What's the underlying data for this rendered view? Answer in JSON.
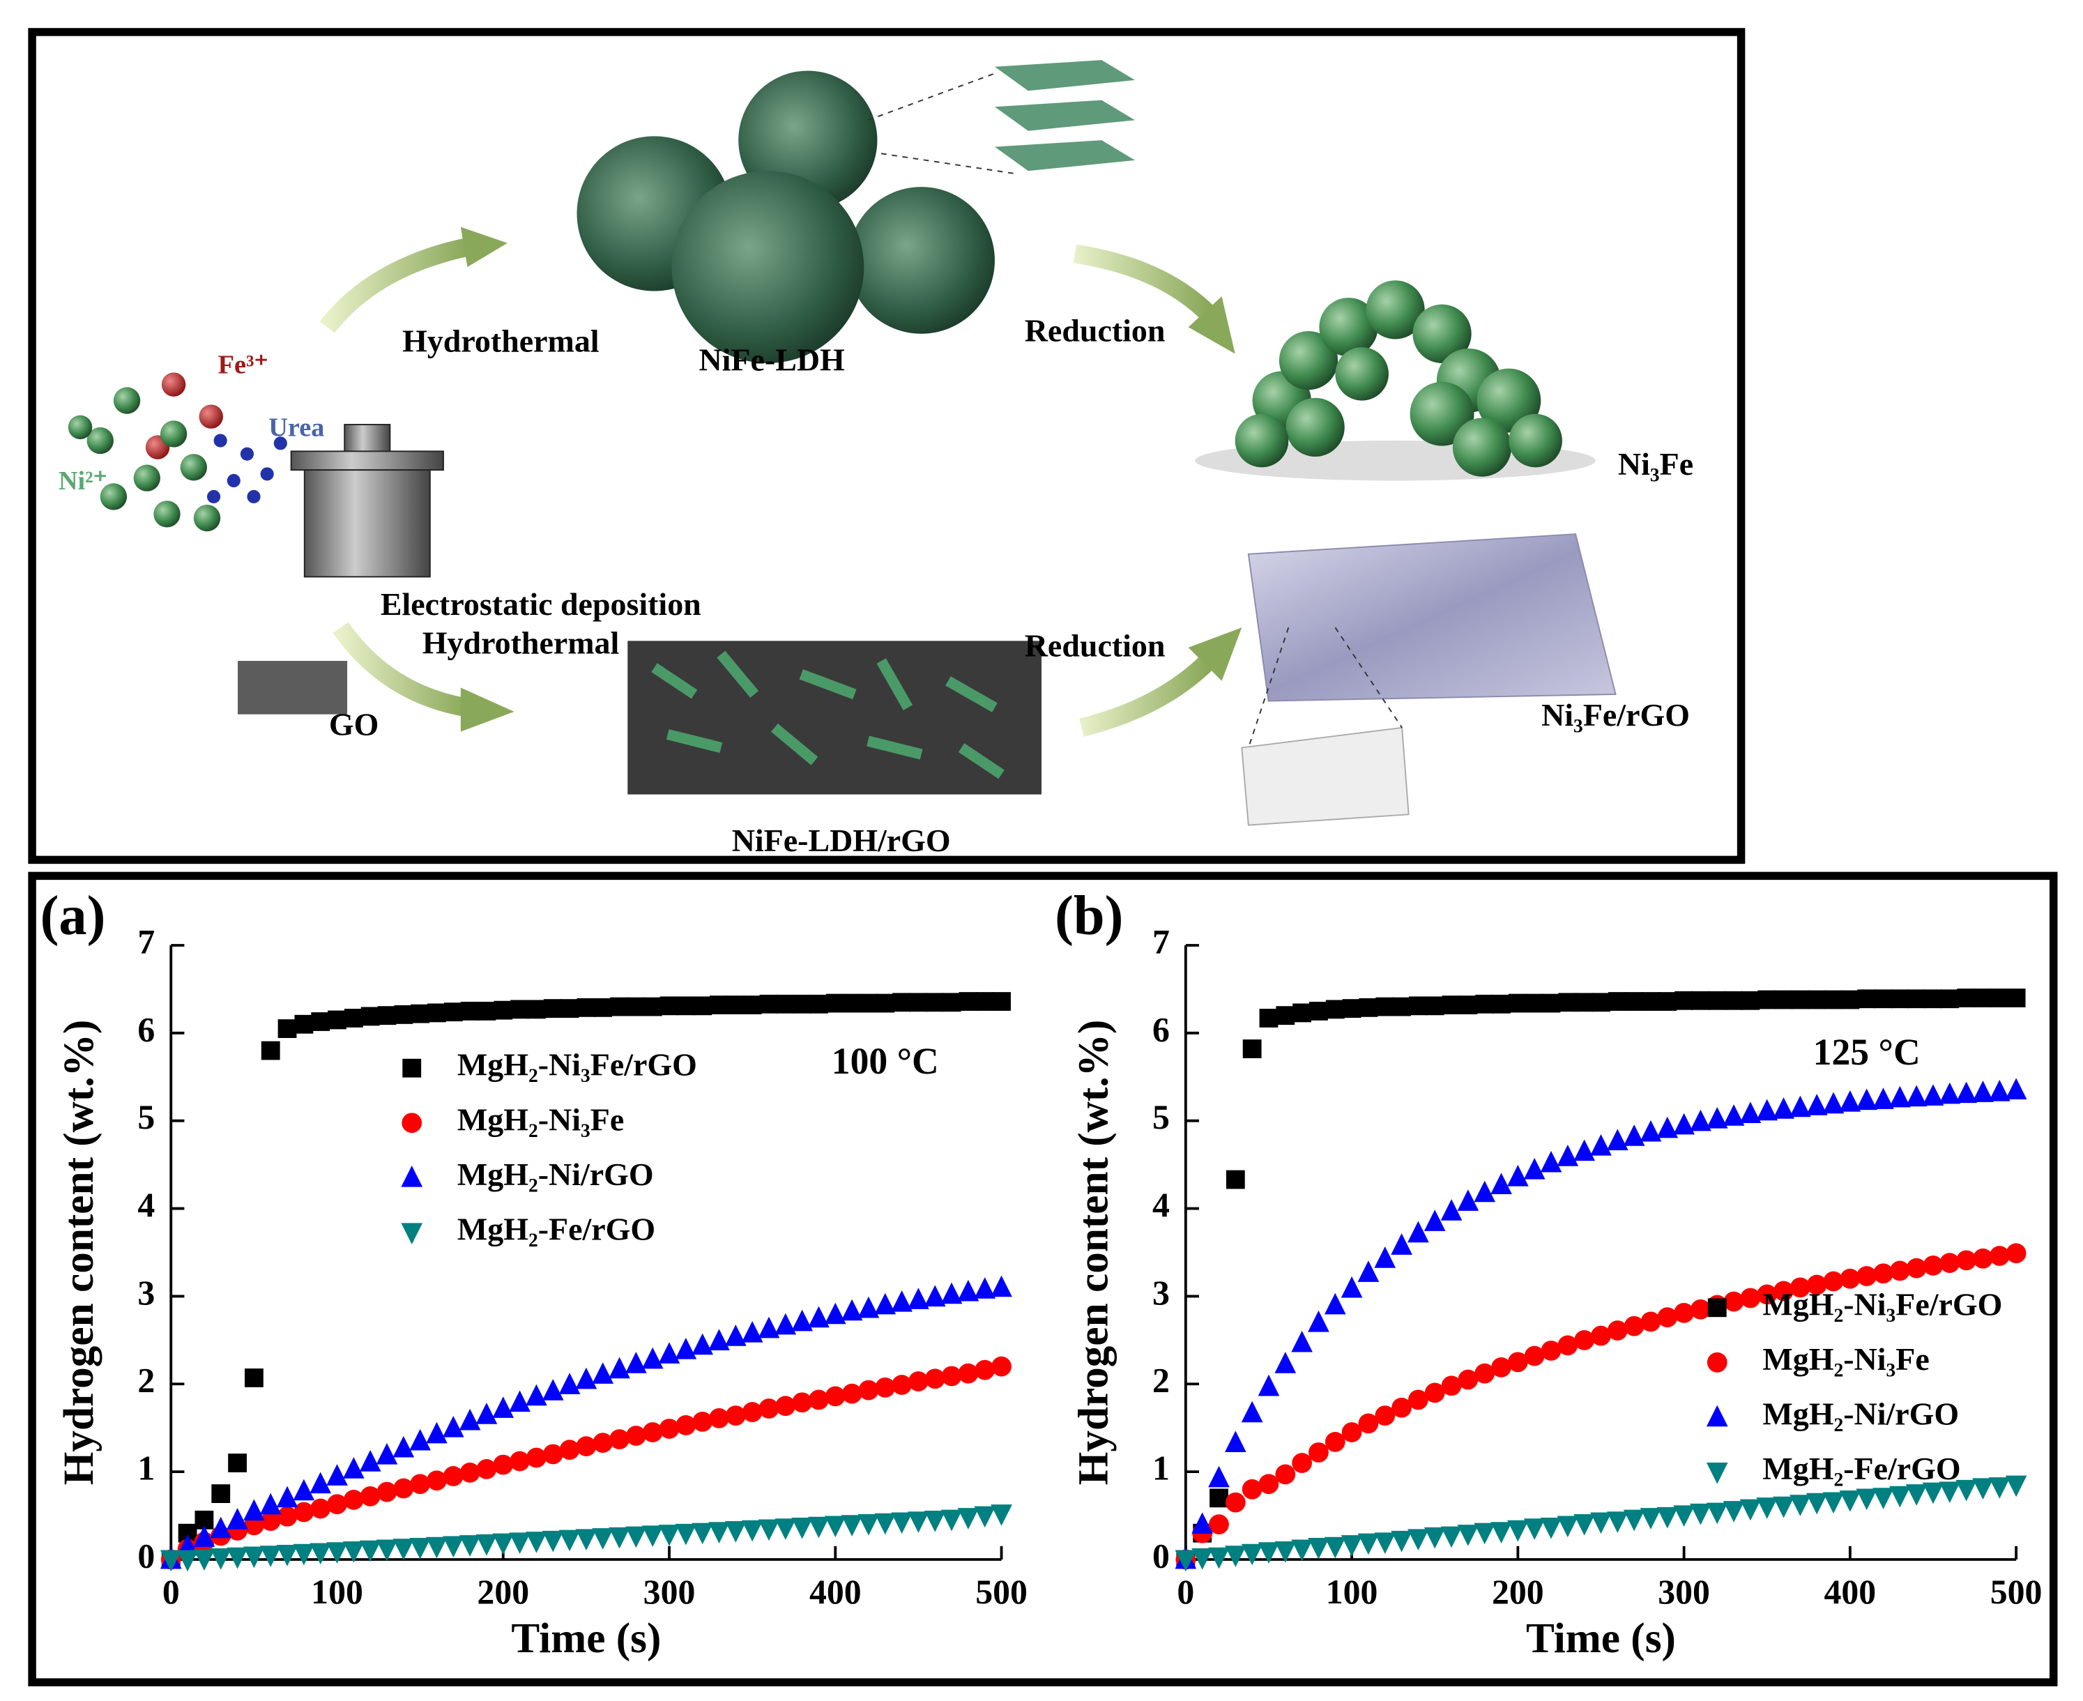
{
  "diagram": {
    "hydrothermal_top": "Hydrothermal",
    "nife_ldh": "NiFe-LDH",
    "reduction_top": "Reduction",
    "ni3fe": "Ni₃Fe",
    "fe3": "Fe³⁺",
    "urea": "Urea",
    "ni2": "Ni²⁺",
    "electrostatic": "Electrostatic deposition",
    "hydrothermal_bottom": "Hydrothermal",
    "go": "GO",
    "nife_ldh_rgo": "NiFe-LDH/rGO",
    "reduction_bottom": "Reduction",
    "ni3fe_rgo": "Ni₃Fe/rGO"
  },
  "chart_data": [
    {
      "type": "scatter",
      "panel": "(a)",
      "annotation": "100 °C",
      "xlabel": "Time (s)",
      "ylabel": "Hydrogen content (wt.%)",
      "xlim": [
        0,
        500
      ],
      "ylim": [
        0,
        7
      ],
      "xticks": [
        0,
        100,
        200,
        300,
        400,
        500
      ],
      "yticks": [
        0,
        1,
        2,
        3,
        4,
        5,
        6,
        7
      ],
      "legend": "upper center",
      "x": [
        0,
        10,
        20,
        30,
        40,
        50,
        60,
        70,
        80,
        90,
        100,
        110,
        120,
        130,
        140,
        150,
        160,
        170,
        180,
        190,
        200,
        210,
        220,
        230,
        240,
        250,
        260,
        270,
        280,
        290,
        300,
        310,
        320,
        330,
        340,
        350,
        360,
        370,
        380,
        390,
        400,
        410,
        420,
        430,
        440,
        450,
        460,
        470,
        480,
        490,
        500
      ],
      "series": [
        {
          "name": "MgH₂-Ni₃Fe/rGO",
          "color": "#000000",
          "marker": "square",
          "values": [
            0,
            0.3,
            0.45,
            0.75,
            1.1,
            2.07,
            5.8,
            6.05,
            6.1,
            6.13,
            6.15,
            6.17,
            6.19,
            6.2,
            6.21,
            6.22,
            6.23,
            6.24,
            6.25,
            6.25,
            6.26,
            6.27,
            6.27,
            6.28,
            6.28,
            6.29,
            6.29,
            6.3,
            6.3,
            6.3,
            6.31,
            6.31,
            6.31,
            6.32,
            6.32,
            6.32,
            6.33,
            6.33,
            6.33,
            6.33,
            6.34,
            6.34,
            6.34,
            6.34,
            6.35,
            6.35,
            6.35,
            6.35,
            6.36,
            6.36,
            6.36
          ]
        },
        {
          "name": "MgH₂-Ni₃Fe",
          "color": "#ff0000",
          "marker": "circle",
          "values": [
            0,
            0.12,
            0.2,
            0.27,
            0.33,
            0.39,
            0.44,
            0.49,
            0.54,
            0.58,
            0.63,
            0.68,
            0.72,
            0.77,
            0.81,
            0.86,
            0.9,
            0.95,
            0.99,
            1.03,
            1.08,
            1.12,
            1.16,
            1.2,
            1.25,
            1.29,
            1.33,
            1.37,
            1.41,
            1.45,
            1.49,
            1.53,
            1.57,
            1.61,
            1.64,
            1.68,
            1.72,
            1.75,
            1.79,
            1.82,
            1.86,
            1.89,
            1.93,
            1.96,
            1.99,
            2.03,
            2.06,
            2.09,
            2.12,
            2.16,
            2.2
          ]
        },
        {
          "name": "MgH₂-Ni/rGO",
          "color": "#0000ff",
          "marker": "triangle-up",
          "values": [
            0,
            0.15,
            0.25,
            0.35,
            0.45,
            0.55,
            0.62,
            0.7,
            0.78,
            0.86,
            0.95,
            1.03,
            1.11,
            1.19,
            1.27,
            1.35,
            1.43,
            1.5,
            1.58,
            1.65,
            1.72,
            1.79,
            1.86,
            1.92,
            1.99,
            2.05,
            2.11,
            2.17,
            2.23,
            2.28,
            2.34,
            2.39,
            2.44,
            2.49,
            2.54,
            2.58,
            2.63,
            2.67,
            2.71,
            2.75,
            2.79,
            2.83,
            2.86,
            2.9,
            2.93,
            2.96,
            2.99,
            3.02,
            3.05,
            3.08,
            3.1
          ]
        },
        {
          "name": "MgH₂-Fe/rGO",
          "color": "#008080",
          "marker": "triangle-down",
          "values": [
            0,
            0,
            0.01,
            0.02,
            0.03,
            0.04,
            0.05,
            0.06,
            0.07,
            0.08,
            0.09,
            0.1,
            0.11,
            0.12,
            0.13,
            0.14,
            0.15,
            0.16,
            0.17,
            0.18,
            0.19,
            0.2,
            0.21,
            0.22,
            0.23,
            0.24,
            0.25,
            0.26,
            0.27,
            0.28,
            0.29,
            0.3,
            0.31,
            0.32,
            0.33,
            0.34,
            0.35,
            0.36,
            0.37,
            0.38,
            0.39,
            0.4,
            0.41,
            0.42,
            0.43,
            0.44,
            0.45,
            0.46,
            0.48,
            0.5,
            0.52
          ]
        }
      ]
    },
    {
      "type": "scatter",
      "panel": "(b)",
      "annotation": "125 °C",
      "xlabel": "Time (s)",
      "ylabel": "Hydrogen content (wt.%)",
      "xlim": [
        0,
        500
      ],
      "ylim": [
        0,
        7
      ],
      "xticks": [
        0,
        100,
        200,
        300,
        400,
        500
      ],
      "yticks": [
        0,
        1,
        2,
        3,
        4,
        5,
        6,
        7
      ],
      "legend": "center right",
      "x": [
        0,
        10,
        20,
        30,
        40,
        50,
        60,
        70,
        80,
        90,
        100,
        110,
        120,
        130,
        140,
        150,
        160,
        170,
        180,
        190,
        200,
        210,
        220,
        230,
        240,
        250,
        260,
        270,
        280,
        290,
        300,
        310,
        320,
        330,
        340,
        350,
        360,
        370,
        380,
        390,
        400,
        410,
        420,
        430,
        440,
        450,
        460,
        470,
        480,
        490,
        500
      ],
      "series": [
        {
          "name": "MgH₂-Ni₃Fe/rGO",
          "color": "#000000",
          "marker": "square",
          "values": [
            0,
            0.3,
            0.7,
            4.33,
            5.82,
            6.17,
            6.2,
            6.23,
            6.25,
            6.27,
            6.28,
            6.29,
            6.3,
            6.3,
            6.31,
            6.31,
            6.32,
            6.32,
            6.33,
            6.33,
            6.34,
            6.34,
            6.34,
            6.35,
            6.35,
            6.35,
            6.36,
            6.36,
            6.36,
            6.36,
            6.37,
            6.37,
            6.37,
            6.37,
            6.37,
            6.38,
            6.38,
            6.38,
            6.38,
            6.38,
            6.38,
            6.39,
            6.39,
            6.39,
            6.39,
            6.39,
            6.39,
            6.4,
            6.4,
            6.4,
            6.4
          ]
        },
        {
          "name": "MgH₂-Ni₃Fe",
          "color": "#ff0000",
          "marker": "circle",
          "values": [
            0,
            0.3,
            0.4,
            0.65,
            0.8,
            0.86,
            0.97,
            1.1,
            1.22,
            1.34,
            1.45,
            1.55,
            1.64,
            1.73,
            1.82,
            1.9,
            1.98,
            2.05,
            2.12,
            2.19,
            2.25,
            2.32,
            2.38,
            2.44,
            2.5,
            2.55,
            2.61,
            2.66,
            2.71,
            2.76,
            2.81,
            2.85,
            2.9,
            2.94,
            2.98,
            3.02,
            3.06,
            3.1,
            3.13,
            3.17,
            3.2,
            3.23,
            3.26,
            3.29,
            3.32,
            3.35,
            3.38,
            3.41,
            3.43,
            3.46,
            3.49
          ]
        },
        {
          "name": "MgH₂-Ni/rGO",
          "color": "#0000ff",
          "marker": "triangle-up",
          "values": [
            0,
            0.4,
            0.93,
            1.33,
            1.67,
            1.97,
            2.23,
            2.47,
            2.7,
            2.9,
            3.09,
            3.27,
            3.43,
            3.58,
            3.72,
            3.85,
            3.97,
            4.08,
            4.18,
            4.27,
            4.36,
            4.44,
            4.52,
            4.59,
            4.65,
            4.71,
            4.77,
            4.82,
            4.87,
            4.91,
            4.95,
            4.99,
            5.02,
            5.05,
            5.08,
            5.11,
            5.13,
            5.15,
            5.17,
            5.19,
            5.21,
            5.23,
            5.24,
            5.26,
            5.27,
            5.28,
            5.3,
            5.31,
            5.32,
            5.33,
            5.35
          ]
        },
        {
          "name": "MgH₂-Fe/rGO",
          "color": "#008080",
          "marker": "triangle-down",
          "values": [
            0,
            0.02,
            0.03,
            0.05,
            0.07,
            0.09,
            0.1,
            0.12,
            0.14,
            0.15,
            0.17,
            0.19,
            0.2,
            0.22,
            0.24,
            0.26,
            0.27,
            0.29,
            0.31,
            0.32,
            0.34,
            0.36,
            0.37,
            0.39,
            0.41,
            0.43,
            0.44,
            0.46,
            0.48,
            0.49,
            0.51,
            0.53,
            0.54,
            0.56,
            0.58,
            0.6,
            0.61,
            0.63,
            0.65,
            0.66,
            0.68,
            0.7,
            0.71,
            0.73,
            0.75,
            0.77,
            0.78,
            0.8,
            0.82,
            0.83,
            0.85
          ]
        }
      ]
    }
  ]
}
